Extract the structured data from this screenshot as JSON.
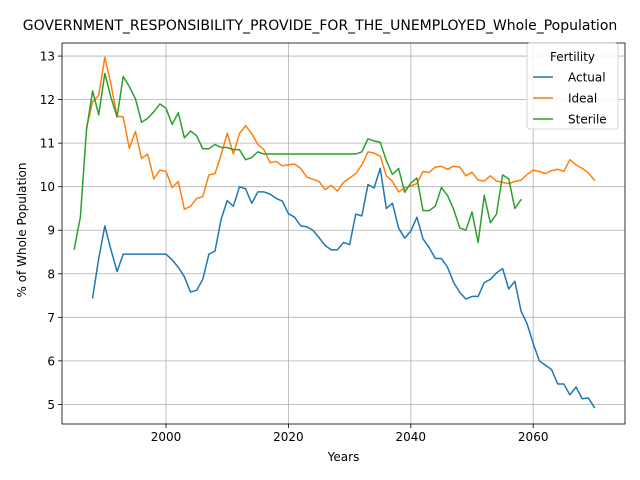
{
  "chart_data": {
    "type": "line",
    "title": "GOVERNMENT_RESPONSIBILITY_PROVIDE_FOR_THE_UNEMPLOYED_Whole_Population",
    "xlabel": "Years",
    "ylabel": "% of Whole Population",
    "xlim": [
      1983,
      2075
    ],
    "ylim": [
      4.55,
      13.3
    ],
    "xticks": [
      2000,
      2020,
      2040,
      2060
    ],
    "yticks": [
      5,
      6,
      7,
      8,
      9,
      10,
      11,
      12,
      13
    ],
    "grid": true,
    "legend": {
      "title": "Fertility",
      "position": "top-right"
    },
    "series": [
      {
        "name": "Actual",
        "color": "#1f77b4",
        "x": [
          1988,
          1989,
          1990,
          1991,
          1992,
          1993,
          1994,
          1995,
          1996,
          1997,
          1998,
          1999,
          2000,
          2001,
          2002,
          2003,
          2004,
          2005,
          2006,
          2007,
          2008,
          2009,
          2010,
          2011,
          2012,
          2013,
          2014,
          2015,
          2016,
          2017,
          2018,
          2019,
          2020,
          2021,
          2022,
          2023,
          2024,
          2025,
          2026,
          2027,
          2028,
          2029,
          2030,
          2031,
          2032,
          2033,
          2034,
          2035,
          2036,
          2037,
          2038,
          2039,
          2040,
          2041,
          2042,
          2043,
          2044,
          2045,
          2046,
          2047,
          2048,
          2049,
          2050,
          2051,
          2052,
          2053,
          2054,
          2055,
          2056,
          2057,
          2058,
          2059,
          2060,
          2061,
          2062,
          2063,
          2064,
          2065,
          2066,
          2067,
          2068,
          2069,
          2070
        ],
        "y": [
          7.45,
          8.35,
          9.1,
          8.55,
          8.05,
          8.45,
          8.45,
          8.45,
          8.45,
          8.45,
          8.45,
          8.45,
          8.45,
          8.32,
          8.15,
          7.93,
          7.58,
          7.62,
          7.87,
          8.45,
          8.52,
          9.25,
          9.68,
          9.55,
          10.0,
          9.95,
          9.62,
          9.88,
          9.88,
          9.83,
          9.73,
          9.67,
          9.38,
          9.3,
          9.1,
          9.08,
          9.0,
          8.83,
          8.65,
          8.55,
          8.55,
          8.72,
          8.67,
          9.37,
          9.33,
          10.05,
          9.97,
          10.42,
          9.5,
          9.62,
          9.05,
          8.82,
          8.98,
          9.3,
          8.8,
          8.6,
          8.35,
          8.35,
          8.15,
          7.8,
          7.57,
          7.42,
          7.48,
          7.48,
          7.8,
          7.87,
          8.02,
          8.12,
          7.65,
          7.83,
          7.15,
          6.85,
          6.4,
          6.0,
          5.9,
          5.8,
          5.47,
          5.47,
          5.22,
          5.4,
          5.13,
          5.15,
          4.93
        ]
      },
      {
        "name": "Ideal",
        "color": "#ff7f0e",
        "x": [
          1987,
          1988,
          1989,
          1990,
          1991,
          1992,
          1993,
          1994,
          1995,
          1996,
          1997,
          1998,
          1999,
          2000,
          2001,
          2002,
          2003,
          2004,
          2005,
          2006,
          2007,
          2008,
          2009,
          2010,
          2011,
          2012,
          2013,
          2014,
          2015,
          2016,
          2017,
          2018,
          2019,
          2020,
          2021,
          2022,
          2023,
          2024,
          2025,
          2026,
          2027,
          2028,
          2029,
          2030,
          2031,
          2032,
          2033,
          2034,
          2035,
          2036,
          2037,
          2038,
          2039,
          2040,
          2041,
          2042,
          2043,
          2044,
          2045,
          2046,
          2047,
          2048,
          2049,
          2050,
          2051,
          2052,
          2053,
          2054,
          2055,
          2056,
          2057,
          2058,
          2059,
          2060,
          2061,
          2062,
          2063,
          2064,
          2065,
          2066,
          2067,
          2068,
          2069,
          2070
        ],
        "y": [
          11.35,
          11.95,
          12.1,
          12.97,
          12.35,
          11.62,
          11.6,
          10.88,
          11.27,
          10.65,
          10.75,
          10.18,
          10.38,
          10.35,
          9.98,
          10.12,
          9.48,
          9.55,
          9.73,
          9.77,
          10.27,
          10.3,
          10.73,
          11.23,
          10.75,
          11.22,
          11.4,
          11.22,
          10.97,
          10.85,
          10.55,
          10.58,
          10.48,
          10.5,
          10.52,
          10.42,
          10.22,
          10.17,
          10.12,
          9.93,
          10.03,
          9.9,
          10.1,
          10.2,
          10.3,
          10.5,
          10.8,
          10.77,
          10.7,
          10.25,
          10.12,
          9.88,
          9.97,
          10.02,
          10.07,
          10.35,
          10.33,
          10.45,
          10.47,
          10.4,
          10.47,
          10.45,
          10.25,
          10.33,
          10.15,
          10.13,
          10.25,
          10.13,
          10.1,
          10.07,
          10.12,
          10.15,
          10.28,
          10.38,
          10.35,
          10.3,
          10.37,
          10.4,
          10.35,
          10.62,
          10.5,
          10.42,
          10.32,
          10.15
        ]
      },
      {
        "name": "Sterile",
        "color": "#2ca02c",
        "x": [
          1985,
          1986,
          1987,
          1988,
          1989,
          1990,
          1991,
          1992,
          1993,
          1994,
          1995,
          1996,
          1997,
          1998,
          1999,
          2000,
          2001,
          2002,
          2003,
          2004,
          2005,
          2006,
          2007,
          2008,
          2009,
          2010,
          2011,
          2012,
          2013,
          2014,
          2015,
          2016,
          2017,
          2018,
          2019,
          2020,
          2021,
          2022,
          2023,
          2024,
          2025,
          2026,
          2027,
          2028,
          2029,
          2030,
          2031,
          2032,
          2033,
          2034,
          2035,
          2036,
          2037,
          2038,
          2039,
          2040,
          2041,
          2042,
          2043,
          2044,
          2045,
          2046,
          2047,
          2048,
          2049,
          2050,
          2051,
          2052,
          2053,
          2054,
          2055,
          2056,
          2057,
          2058
        ],
        "y": [
          8.57,
          9.3,
          11.3,
          12.2,
          11.65,
          12.6,
          12.05,
          11.6,
          12.53,
          12.3,
          12.02,
          11.48,
          11.57,
          11.72,
          11.9,
          11.8,
          11.43,
          11.7,
          11.12,
          11.28,
          11.17,
          10.87,
          10.87,
          10.97,
          10.9,
          10.9,
          10.85,
          10.85,
          10.62,
          10.67,
          10.8,
          10.75,
          10.75,
          10.75,
          10.75,
          10.75,
          10.75,
          10.75,
          10.75,
          10.75,
          10.75,
          10.75,
          10.75,
          10.75,
          10.75,
          10.75,
          10.75,
          10.8,
          11.1,
          11.05,
          11.02,
          10.6,
          10.28,
          10.42,
          9.87,
          10.08,
          10.2,
          9.45,
          9.45,
          9.55,
          9.98,
          9.8,
          9.48,
          9.05,
          9.0,
          9.42,
          8.72,
          9.8,
          9.17,
          9.37,
          10.27,
          10.18,
          9.5,
          9.7
        ]
      }
    ]
  }
}
